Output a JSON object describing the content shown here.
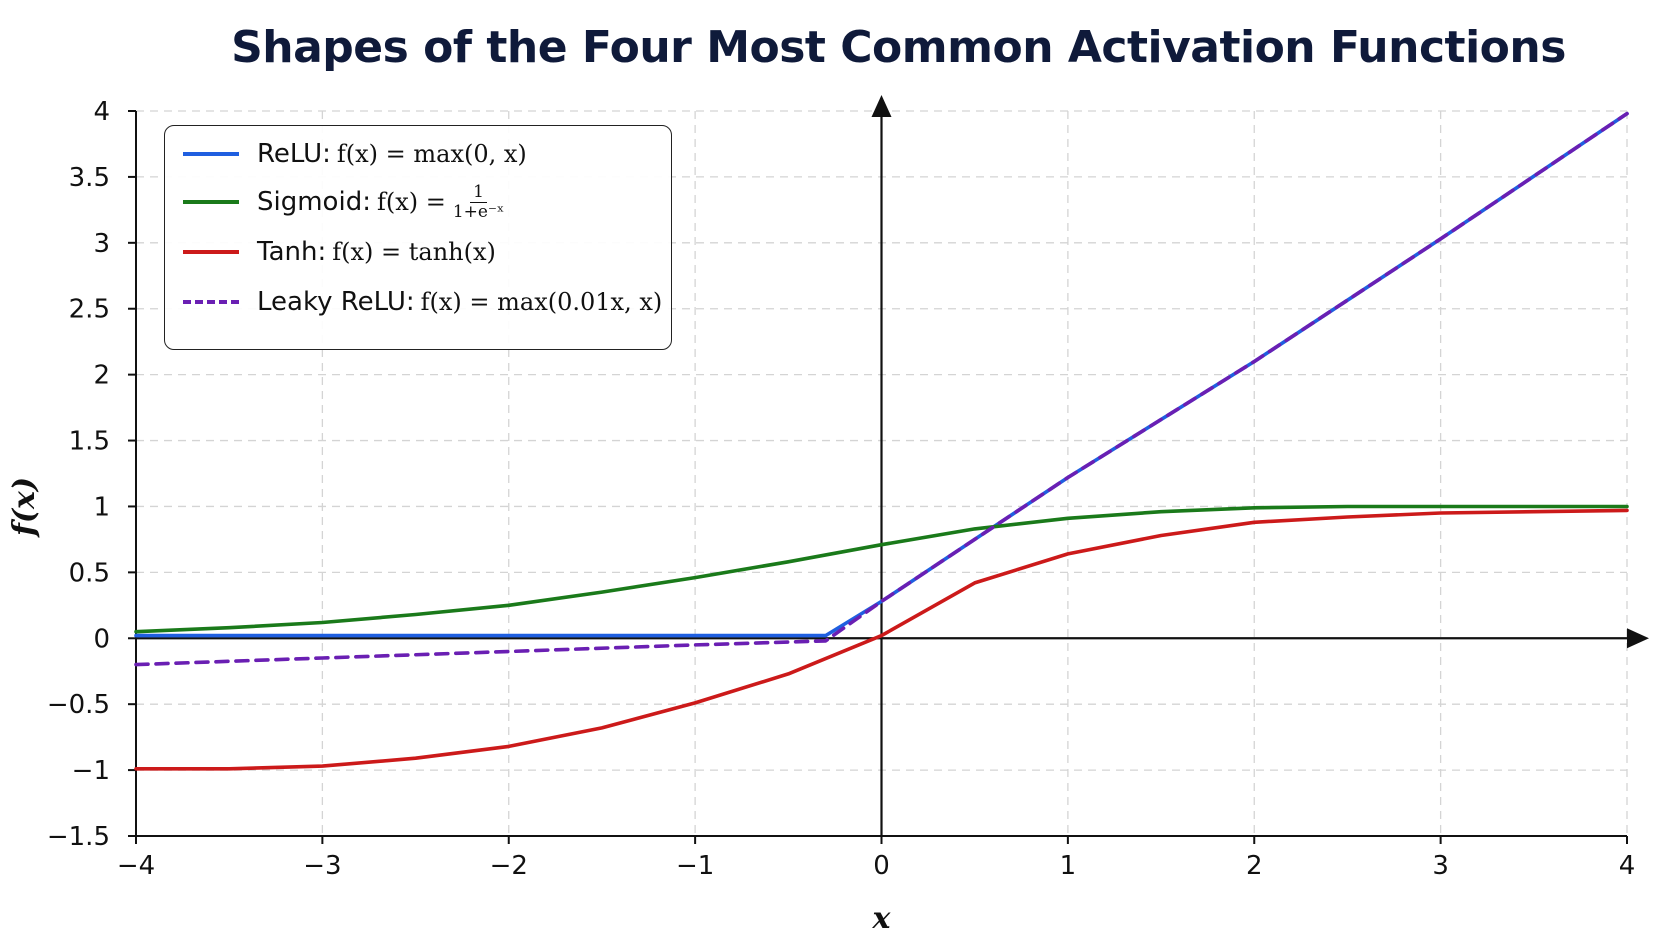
{
  "chart_data": {
    "type": "line",
    "title": "Shapes of the Four Most Common Activation Functions",
    "xlabel": "x",
    "ylabel": "f(x)",
    "xlim": [
      -4,
      4
    ],
    "ylim": [
      -1.5,
      4
    ],
    "grid": true,
    "legend_placement": "top-left",
    "x_ticks": [
      "−4",
      "−3",
      "−2",
      "−1",
      "0",
      "1",
      "2",
      "3",
      "4"
    ],
    "y_ticks": [
      "−1.5",
      "−1",
      "−0.5",
      "0",
      "0.5",
      "1",
      "1.5",
      "2",
      "2.5",
      "3",
      "3.5",
      "4"
    ],
    "series": [
      {
        "name": "ReLU",
        "formula_prefix": "f(x) = max(0, x)",
        "color": "#1f5fe0",
        "style": "solid",
        "x": [
          -4,
          -3,
          -2,
          -1,
          -0.3,
          0,
          0.5,
          1,
          2,
          3,
          4
        ],
        "y": [
          0.02,
          0.02,
          0.02,
          0.02,
          0.02,
          0.28,
          0.75,
          1.22,
          2.1,
          3.03,
          3.98
        ]
      },
      {
        "name": "Sigmoid",
        "formula_prefix": "f(x) =",
        "formula_num": "1",
        "formula_den": "1+e⁻ˣ",
        "color": "#1a7a1a",
        "style": "solid",
        "x": [
          -4,
          -3.5,
          -3,
          -2.5,
          -2,
          -1.5,
          -1,
          -0.5,
          0,
          0.5,
          1,
          1.5,
          2,
          2.5,
          3,
          3.5,
          4
        ],
        "y": [
          0.05,
          0.08,
          0.12,
          0.18,
          0.25,
          0.35,
          0.46,
          0.58,
          0.71,
          0.83,
          0.91,
          0.96,
          0.99,
          1.0,
          1.0,
          1.0,
          1.0
        ]
      },
      {
        "name": "Tanh",
        "formula_prefix": "f(x) = tanh(x)",
        "color": "#cc1a1a",
        "style": "solid",
        "x": [
          -4,
          -3.5,
          -3,
          -2.5,
          -2,
          -1.5,
          -1,
          -0.5,
          0,
          0.5,
          1,
          1.5,
          2,
          2.5,
          3,
          3.5,
          4
        ],
        "y": [
          -0.99,
          -0.99,
          -0.97,
          -0.91,
          -0.82,
          -0.68,
          -0.49,
          -0.27,
          0.02,
          0.42,
          0.64,
          0.78,
          0.88,
          0.92,
          0.95,
          0.96,
          0.97
        ]
      },
      {
        "name": "Leaky ReLU",
        "formula_prefix": "f(x) = max(0.01x, x)",
        "color": "#6a1fb3",
        "style": "dashed",
        "x": [
          -4,
          -3,
          -2,
          -1,
          -0.3,
          0,
          0.5,
          1,
          2,
          3,
          4
        ],
        "y": [
          -0.2,
          -0.15,
          -0.1,
          -0.05,
          -0.02,
          0.28,
          0.75,
          1.22,
          2.1,
          3.03,
          3.98
        ]
      }
    ]
  }
}
